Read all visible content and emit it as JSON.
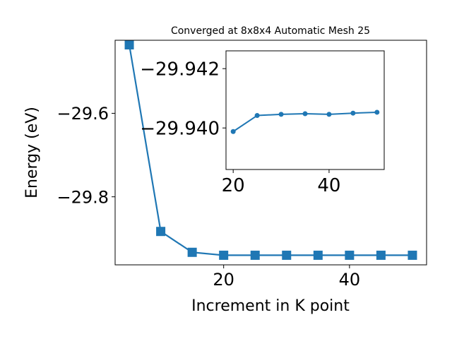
{
  "chart_data": [
    {
      "id": "main",
      "type": "line",
      "title": "Converged at 8x8x4 Automatic Mesh 25",
      "xlabel": "Increment in K point",
      "ylabel": "Energy (eV)",
      "xlim": [
        2.75,
        52.25
      ],
      "ylim": [
        -29.963,
        -29.425
      ],
      "xticks": [
        20,
        40
      ],
      "xtick_labels": [
        "20",
        "40"
      ],
      "yticks": [
        -29.6,
        -29.8
      ],
      "ytick_labels": [
        "−29.6",
        "−29.8"
      ],
      "marker": "square",
      "color": "#1f77b4",
      "x": [
        5,
        10,
        15,
        20,
        25,
        30,
        35,
        40,
        45,
        50
      ],
      "y": [
        -29.436,
        -29.883,
        -29.933,
        -29.94,
        -29.94,
        -29.94,
        -29.94,
        -29.94,
        -29.94,
        -29.94
      ]
    },
    {
      "id": "inset",
      "type": "line",
      "title": "",
      "xlabel": "",
      "ylabel": "",
      "xlim": [
        18.5,
        51.5
      ],
      "ylim": [
        -29.9386,
        -29.9426
      ],
      "xticks": [
        20,
        40
      ],
      "xtick_labels": [
        "20",
        "40"
      ],
      "yticks": [
        -29.942,
        -29.94
      ],
      "ytick_labels": [
        "−29.942",
        "−29.940"
      ],
      "marker": "circle",
      "color": "#1f77b4",
      "x": [
        20,
        25,
        30,
        35,
        40,
        45,
        50
      ],
      "y": [
        -29.93988,
        -29.94042,
        -29.94046,
        -29.94048,
        -29.94046,
        -29.9405,
        -29.94053
      ]
    }
  ]
}
